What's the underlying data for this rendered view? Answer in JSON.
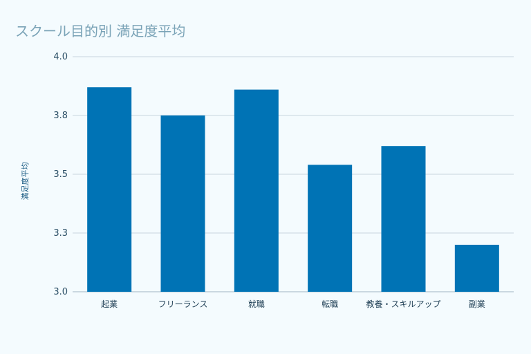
{
  "chart_data": {
    "type": "bar",
    "title": "スクール目的別 満足度平均",
    "xlabel": "",
    "ylabel": "満足度平均",
    "ylim": [
      3.0,
      4.0
    ],
    "yticks": [
      "3.0",
      "3.3",
      "3.5",
      "3.8",
      "4.0"
    ],
    "ytick_values": [
      3.0,
      3.25,
      3.5,
      3.75,
      4.0
    ],
    "categories": [
      "起業",
      "フリーランス",
      "就職",
      "転職",
      "教養・スキルアップ",
      "副業"
    ],
    "values": [
      3.87,
      3.75,
      3.86,
      3.54,
      3.62,
      3.2
    ],
    "grid": true,
    "legend": "none",
    "colors": {
      "bar": "#0073b5",
      "background": "#f4fbfe"
    }
  }
}
